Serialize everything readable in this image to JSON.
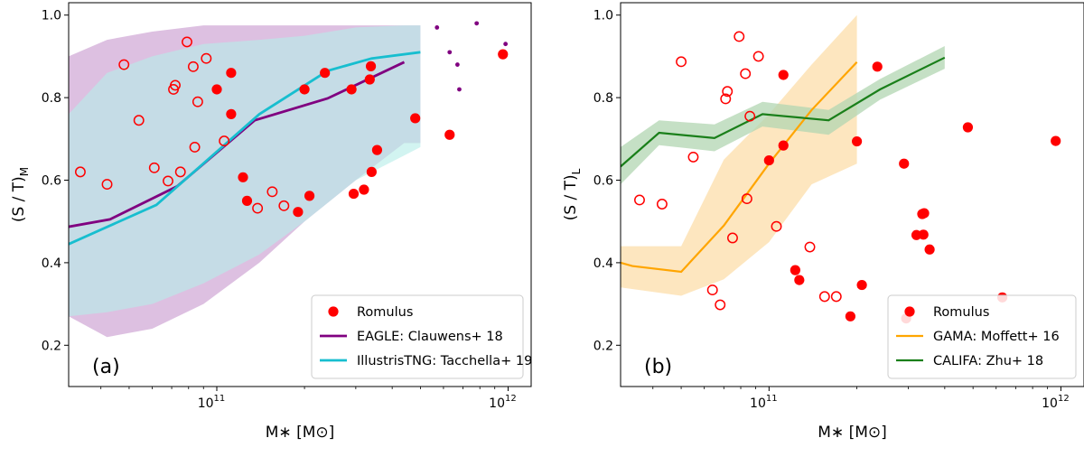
{
  "chart_data": [
    {
      "type": "scatter",
      "panel_label": "(a)",
      "xlabel": "M∗ [M⊙]",
      "ylabel": "(S / T)",
      "ylabel_subscript": "M",
      "xscale": "log",
      "xlim": [
        31000000000.0,
        1200000000000.0
      ],
      "ylim": [
        0.1,
        1.03
      ],
      "xticks": [
        {
          "value": 100000000000.0,
          "base": "10",
          "exp": "11"
        },
        {
          "value": 1000000000000.0,
          "base": "10",
          "exp": "12"
        }
      ],
      "yticks": [
        {
          "value": 0.2,
          "label": "0.2"
        },
        {
          "value": 0.4,
          "label": "0.4"
        },
        {
          "value": 0.6,
          "label": "0.6"
        },
        {
          "value": 0.8,
          "label": "0.8"
        },
        {
          "value": 1.0,
          "label": "1.0"
        }
      ],
      "legend_position": "bottom-right",
      "colors": {
        "romulus": "#ff0000",
        "eagle": "#800080",
        "eagle_band": "#d7b5dc",
        "tng": "#17becf",
        "tng_band": "#b6ede9"
      },
      "legend": [
        {
          "label": "Romulus",
          "kind": "dot",
          "color": "#ff0000"
        },
        {
          "label": "EAGLE: Clauwens+ 18",
          "kind": "line",
          "color": "#800080"
        },
        {
          "label": "IllustrisTNG: Tacchella+ 19",
          "kind": "line",
          "color": "#17becf"
        }
      ],
      "bands": [
        {
          "name": "EAGLE",
          "color": "#d7b5dc",
          "x": [
            31000000000.0,
            42000000000.0,
            60000000000.0,
            90000000000.0,
            140000000000.0,
            200000000000.0,
            300000000000.0,
            440000000000.0,
            500000000000.0
          ],
          "upper": [
            0.9,
            0.94,
            0.96,
            0.975,
            0.975,
            0.975,
            0.975,
            0.975,
            0.975
          ],
          "lower": [
            0.27,
            0.22,
            0.24,
            0.3,
            0.4,
            0.5,
            0.6,
            0.69,
            0.69
          ]
        },
        {
          "name": "IllustrisTNG",
          "color": "#b6ede9",
          "x": [
            31000000000.0,
            42000000000.0,
            60000000000.0,
            90000000000.0,
            140000000000.0,
            200000000000.0,
            300000000000.0,
            440000000000.0,
            500000000000.0
          ],
          "upper": [
            0.76,
            0.86,
            0.9,
            0.93,
            0.94,
            0.95,
            0.97,
            0.975,
            0.975
          ],
          "lower": [
            0.27,
            0.28,
            0.3,
            0.35,
            0.42,
            0.5,
            0.6,
            0.66,
            0.68
          ]
        }
      ],
      "lines": [
        {
          "name": "EAGLE: Clauwens+ 18",
          "color": "#800080",
          "x": [
            31000000000.0,
            43000000000.0,
            73000000000.0,
            135000000000.0,
            240000000000.0,
            440000000000.0
          ],
          "y": [
            0.487,
            0.505,
            0.585,
            0.745,
            0.798,
            0.886
          ]
        },
        {
          "name": "IllustrisTNG: Tacchella+ 19",
          "color": "#17becf",
          "x": [
            31000000000.0,
            62000000000.0,
            140000000000.0,
            240000000000.0,
            340000000000.0,
            500000000000.0
          ],
          "y": [
            0.445,
            0.54,
            0.76,
            0.865,
            0.895,
            0.91
          ]
        }
      ],
      "small_dots": {
        "color": "#800080",
        "x": [
          570000000000.0,
          630000000000.0,
          670000000000.0,
          680000000000.0,
          780000000000.0,
          980000000000.0
        ],
        "y": [
          0.97,
          0.91,
          0.88,
          0.82,
          0.98,
          0.93
        ]
      },
      "open_points": {
        "x": [
          34000000000.0,
          42000000000.0,
          48000000000.0,
          54000000000.0,
          61000000000.0,
          68000000000.0,
          71000000000.0,
          72000000000.0,
          75000000000.0,
          79000000000.0,
          83000000000.0,
          84000000000.0,
          86000000000.0,
          92000000000.0,
          106000000000.0,
          138000000000.0,
          155000000000.0,
          170000000000.0
        ],
        "y": [
          0.62,
          0.59,
          0.88,
          0.745,
          0.63,
          0.598,
          0.82,
          0.83,
          0.62,
          0.935,
          0.875,
          0.68,
          0.79,
          0.895,
          0.695,
          0.532,
          0.572,
          0.538
        ]
      },
      "filled_points": {
        "x": [
          100000000000.0,
          112000000000.0,
          112000000000.0,
          123000000000.0,
          127000000000.0,
          190000000000.0,
          200000000000.0,
          208000000000.0,
          235000000000.0,
          290000000000.0,
          295000000000.0,
          320000000000.0,
          335000000000.0,
          338000000000.0,
          340000000000.0,
          355000000000.0,
          480000000000.0,
          630000000000.0,
          960000000000.0
        ],
        "y": [
          0.82,
          0.86,
          0.76,
          0.607,
          0.55,
          0.523,
          0.82,
          0.562,
          0.86,
          0.82,
          0.567,
          0.577,
          0.844,
          0.876,
          0.62,
          0.673,
          0.75,
          0.71,
          0.905
        ]
      }
    },
    {
      "type": "scatter",
      "panel_label": "(b)",
      "xlabel": "M∗ [M⊙]",
      "ylabel": "(S / T)",
      "ylabel_subscript": "L",
      "xscale": "log",
      "xlim": [
        31000000000.0,
        1200000000000.0
      ],
      "ylim": [
        0.1,
        1.03
      ],
      "xticks": [
        {
          "value": 100000000000.0,
          "base": "10",
          "exp": "11"
        },
        {
          "value": 1000000000000.0,
          "base": "10",
          "exp": "12"
        }
      ],
      "yticks": [
        {
          "value": 0.2,
          "label": "0.2"
        },
        {
          "value": 0.4,
          "label": "0.4"
        },
        {
          "value": 0.6,
          "label": "0.6"
        },
        {
          "value": 0.8,
          "label": "0.8"
        },
        {
          "value": 1.0,
          "label": "1.0"
        }
      ],
      "legend_position": "bottom-right",
      "colors": {
        "romulus": "#ff0000",
        "gama": "#ffa500",
        "gama_band": "#fde2b4",
        "califa": "#1a7f1a",
        "califa_band": "#b2d5b2"
      },
      "legend": [
        {
          "label": "Romulus",
          "kind": "dot",
          "color": "#ff0000"
        },
        {
          "label": "GAMA: Moffett+ 16",
          "kind": "line",
          "color": "#ffa500"
        },
        {
          "label": "CALIFA: Zhu+ 18",
          "kind": "line",
          "color": "#1a7f1a"
        }
      ],
      "bands": [
        {
          "name": "GAMA",
          "color": "#fde2b4",
          "x": [
            31000000000.0,
            50000000000.0,
            70000000000.0,
            100000000000.0,
            140000000000.0,
            200000000000.0
          ],
          "upper": [
            0.44,
            0.44,
            0.65,
            0.76,
            0.88,
            1.0
          ],
          "lower": [
            0.34,
            0.32,
            0.36,
            0.45,
            0.59,
            0.64
          ]
        },
        {
          "name": "CALIFA",
          "color": "#b2d5b2",
          "x": [
            31000000000.0,
            42000000000.0,
            65000000000.0,
            95000000000.0,
            160000000000.0,
            240000000000.0,
            400000000000.0
          ],
          "upper": [
            0.68,
            0.745,
            0.735,
            0.79,
            0.77,
            0.845,
            0.925
          ],
          "lower": [
            0.59,
            0.685,
            0.67,
            0.73,
            0.71,
            0.795,
            0.87
          ]
        }
      ],
      "lines": [
        {
          "name": "GAMA: Moffett+ 16",
          "color": "#ffa500",
          "x": [
            31000000000.0,
            34000000000.0,
            50000000000.0,
            70000000000.0,
            100000000000.0,
            140000000000.0,
            200000000000.0
          ],
          "y": [
            0.4,
            0.392,
            0.378,
            0.49,
            0.64,
            0.77,
            0.886
          ]
        },
        {
          "name": "CALIFA: Zhu+ 18",
          "color": "#1a7f1a",
          "x": [
            31000000000.0,
            42000000000.0,
            65000000000.0,
            95000000000.0,
            160000000000.0,
            240000000000.0,
            400000000000.0
          ],
          "y": [
            0.633,
            0.715,
            0.702,
            0.76,
            0.745,
            0.82,
            0.897
          ]
        }
      ],
      "open_points": {
        "x": [
          36000000000.0,
          43000000000.0,
          50000000000.0,
          55000000000.0,
          64000000000.0,
          68000000000.0,
          71000000000.0,
          72000000000.0,
          75000000000.0,
          79000000000.0,
          83000000000.0,
          84000000000.0,
          86000000000.0,
          92000000000.0,
          106000000000.0,
          138000000000.0,
          155000000000.0,
          170000000000.0
        ],
        "y": [
          0.552,
          0.542,
          0.887,
          0.656,
          0.334,
          0.298,
          0.797,
          0.815,
          0.46,
          0.948,
          0.858,
          0.555,
          0.755,
          0.9,
          0.488,
          0.438,
          0.318,
          0.318
        ]
      },
      "filled_points": {
        "x": [
          100000000000.0,
          112000000000.0,
          112000000000.0,
          123000000000.0,
          127000000000.0,
          190000000000.0,
          200000000000.0,
          208000000000.0,
          235000000000.0,
          290000000000.0,
          295000000000.0,
          320000000000.0,
          335000000000.0,
          338000000000.0,
          340000000000.0,
          355000000000.0,
          480000000000.0,
          630000000000.0,
          960000000000.0
        ],
        "y": [
          0.648,
          0.684,
          0.855,
          0.382,
          0.358,
          0.27,
          0.694,
          0.346,
          0.875,
          0.64,
          0.265,
          0.467,
          0.518,
          0.468,
          0.52,
          0.432,
          0.728,
          0.316,
          0.695
        ]
      }
    }
  ]
}
